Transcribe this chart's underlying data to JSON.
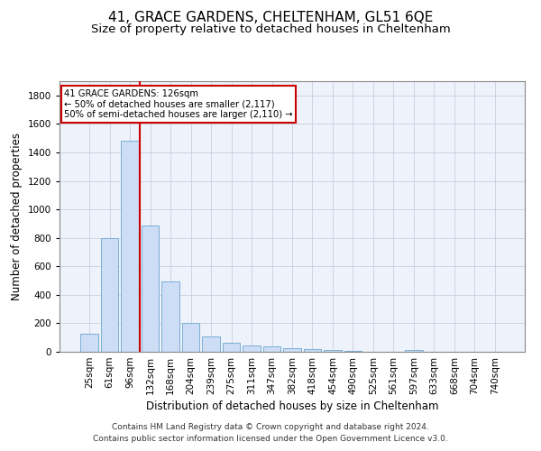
{
  "title1": "41, GRACE GARDENS, CHELTENHAM, GL51 6QE",
  "title2": "Size of property relative to detached houses in Cheltenham",
  "xlabel": "Distribution of detached houses by size in Cheltenham",
  "ylabel": "Number of detached properties",
  "categories": [
    "25sqm",
    "61sqm",
    "96sqm",
    "132sqm",
    "168sqm",
    "204sqm",
    "239sqm",
    "275sqm",
    "311sqm",
    "347sqm",
    "382sqm",
    "418sqm",
    "454sqm",
    "490sqm",
    "525sqm",
    "561sqm",
    "597sqm",
    "633sqm",
    "668sqm",
    "704sqm",
    "740sqm"
  ],
  "values": [
    125,
    795,
    1480,
    885,
    495,
    205,
    105,
    65,
    45,
    35,
    25,
    20,
    10,
    5,
    3,
    2,
    15,
    2,
    1,
    1,
    1
  ],
  "bar_color": "#ccddf5",
  "bar_edge_color": "#7bafd4",
  "vline_color": "#cc0000",
  "annotation_box_text": "41 GRACE GARDENS: 126sqm\n← 50% of detached houses are smaller (2,117)\n50% of semi-detached houses are larger (2,110) →",
  "annotation_box_color": "#cc0000",
  "annotation_box_fill": "#ffffff",
  "ylim": [
    0,
    1900
  ],
  "yticks": [
    0,
    200,
    400,
    600,
    800,
    1000,
    1200,
    1400,
    1600,
    1800
  ],
  "footer1": "Contains HM Land Registry data © Crown copyright and database right 2024.",
  "footer2": "Contains public sector information licensed under the Open Government Licence v3.0.",
  "bg_color": "#eef2fb",
  "grid_color": "#c8cfe0",
  "title1_fontsize": 11,
  "title2_fontsize": 9.5,
  "axis_label_fontsize": 8.5,
  "tick_fontsize": 7.5,
  "footer_fontsize": 6.5
}
